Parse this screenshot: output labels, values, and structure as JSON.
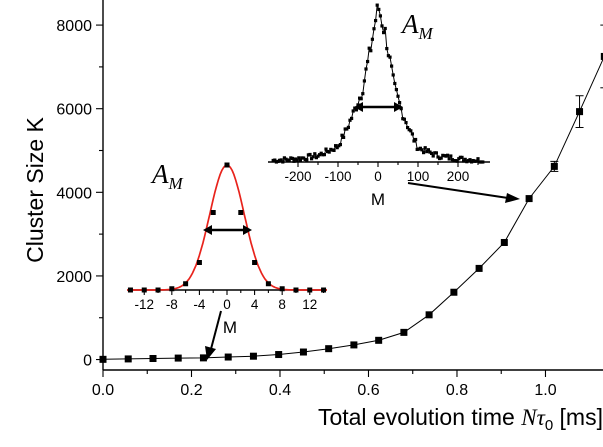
{
  "chart_data": [
    {
      "type": "scatter",
      "xlabel_prefix": "Total evolution time ",
      "xlabel_var": "N",
      "xlabel_tau": "τ",
      "xlabel_sub": "0",
      "xlabel_unit": " [ms]",
      "ylabel": "Cluster Size K",
      "xlim": [
        0.0,
        1.13
      ],
      "ylim": [
        -250,
        8600
      ],
      "xticks": [
        "0.0",
        "0.2",
        "0.4",
        "0.6",
        "0.8",
        "1.0"
      ],
      "yticks": [
        "0",
        "2000",
        "4000",
        "6000",
        "8000"
      ],
      "x": [
        0.0,
        0.057,
        0.113,
        0.17,
        0.227,
        0.283,
        0.34,
        0.397,
        0.453,
        0.51,
        0.567,
        0.623,
        0.68,
        0.737,
        0.793,
        0.85,
        0.907,
        0.963,
        1.02,
        1.077,
        1.133
      ],
      "y": [
        5,
        15,
        25,
        35,
        40,
        60,
        80,
        120,
        180,
        260,
        350,
        460,
        650,
        1070,
        1610,
        2180,
        2800,
        3850,
        4620,
        5930,
        7250
      ],
      "err": [
        0,
        0,
        0,
        0,
        0,
        0,
        0,
        0,
        0,
        0,
        0,
        0,
        0,
        0,
        0,
        0,
        0,
        0,
        120,
        380,
        750
      ],
      "marker": "square",
      "fit": "line",
      "color": "#000000"
    },
    {
      "type": "scatter",
      "label": "A",
      "label_sub": "M",
      "xlabel": "M",
      "xlim": [
        -14.5,
        14.5
      ],
      "ylim": [
        0,
        1.08
      ],
      "xticks": [
        "-12",
        "-8",
        "-4",
        "0",
        "4",
        "8",
        "12"
      ],
      "x": [
        -14,
        -12,
        -10,
        -8,
        -6,
        -4,
        -2,
        0,
        2,
        4,
        6,
        8,
        10,
        12,
        14
      ],
      "y": [
        0.0,
        0.0,
        0.0,
        0.01,
        0.05,
        0.22,
        0.62,
        1.0,
        0.62,
        0.22,
        0.05,
        0.01,
        0.0,
        0.0,
        0.0
      ],
      "fit_color": "#e8231c"
    },
    {
      "type": "scatter",
      "label": "A",
      "label_sub": "M",
      "xlabel": "M",
      "xlim": [
        -270,
        270
      ],
      "ylim": [
        0,
        1.02
      ],
      "xticks": [
        "-200",
        "-100",
        "0",
        "100",
        "200"
      ],
      "envelope": [
        [
          -260,
          0.01
        ],
        [
          -200,
          0.02
        ],
        [
          -150,
          0.04
        ],
        [
          -100,
          0.1
        ],
        [
          -80,
          0.2
        ],
        [
          -60,
          0.32
        ],
        [
          -40,
          0.45
        ],
        [
          -20,
          0.7
        ],
        [
          0,
          1.0
        ],
        [
          20,
          0.8
        ],
        [
          40,
          0.48
        ],
        [
          60,
          0.32
        ],
        [
          80,
          0.2
        ],
        [
          100,
          0.09
        ],
        [
          150,
          0.04
        ],
        [
          200,
          0.02
        ],
        [
          260,
          0.01
        ]
      ]
    }
  ]
}
